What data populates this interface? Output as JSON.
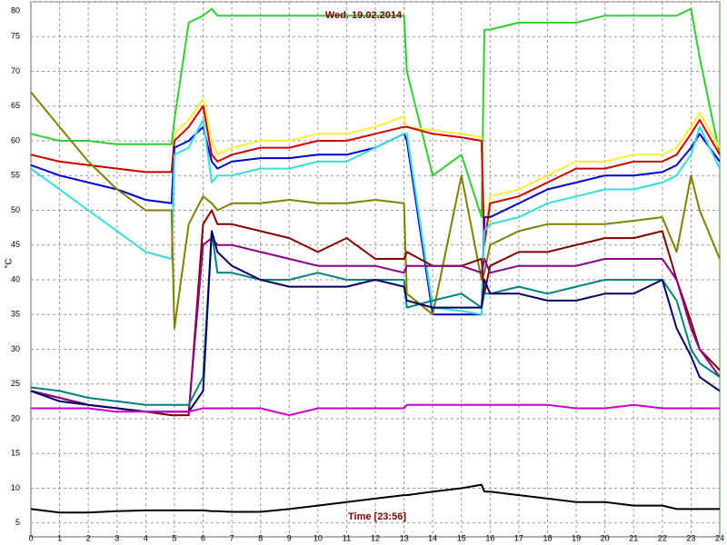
{
  "chart_data": {
    "type": "line",
    "title": "Wed. 19.02.2014",
    "x_label": "Time [23:56]",
    "y_label": "°C",
    "x": [
      0,
      1,
      2,
      3,
      4,
      4.9,
      5,
      5.5,
      6,
      6.3,
      6.5,
      7,
      8,
      9,
      10,
      11,
      12,
      13,
      13.1,
      14,
      15,
      15.7,
      15.8,
      16,
      17,
      18,
      19,
      20,
      21,
      22,
      22.5,
      23,
      23.3,
      24
    ],
    "series": [
      {
        "color": "#33cc33",
        "values": [
          61,
          60,
          60,
          59.5,
          59.5,
          59.5,
          63,
          77,
          78,
          79,
          78,
          78,
          78,
          78,
          78,
          78,
          78,
          78,
          70,
          55,
          58,
          49,
          76,
          76,
          77,
          77,
          77,
          78,
          78,
          78,
          78,
          79,
          72,
          58
        ]
      },
      {
        "color": "#ffee33",
        "values": [
          58,
          57,
          56.5,
          56,
          55.5,
          55.5,
          61,
          63,
          66,
          60,
          58,
          59,
          60,
          60,
          61,
          61,
          62,
          63.5,
          62,
          61.5,
          61,
          60.5,
          46,
          52,
          53,
          55,
          57,
          57,
          58,
          58,
          59,
          62,
          64,
          59
        ]
      },
      {
        "color": "#cc0000",
        "values": [
          58,
          57,
          56.5,
          56,
          55.5,
          55.5,
          60,
          62,
          65,
          58,
          57,
          58,
          59,
          59,
          60,
          60,
          61,
          62,
          62,
          61,
          60.5,
          60,
          45,
          51,
          52,
          54,
          56,
          56,
          57,
          57,
          58,
          61,
          63,
          58
        ]
      },
      {
        "color": "#0000cc",
        "values": [
          56.5,
          55,
          54,
          53,
          51.5,
          51,
          59,
          60,
          62,
          57,
          56,
          57,
          57.5,
          57.5,
          58,
          58,
          59,
          61,
          60,
          35,
          35,
          35,
          49,
          49,
          51,
          53,
          54,
          55,
          55,
          55.5,
          56.5,
          59,
          61,
          57
        ]
      },
      {
        "color": "#33dddd",
        "values": [
          56,
          53,
          50,
          47,
          44,
          43,
          58,
          59,
          63,
          54,
          55,
          55,
          56,
          56,
          57,
          57,
          59,
          61,
          61,
          36,
          35.5,
          35,
          47,
          48,
          49,
          51,
          52,
          53,
          53,
          54,
          55,
          58,
          62,
          56
        ]
      },
      {
        "color": "#808000",
        "values": [
          67,
          62,
          57,
          53,
          50,
          50,
          33,
          48,
          52,
          51,
          50,
          51,
          51,
          51.5,
          51,
          51,
          51.5,
          51,
          38,
          35,
          55,
          40,
          41,
          45,
          47,
          48,
          48,
          48,
          48.5,
          49,
          44,
          55,
          50,
          43
        ]
      },
      {
        "color": "#800000",
        "values": [
          24,
          23,
          22,
          21.5,
          21,
          20.5,
          20.5,
          20.5,
          48,
          50,
          48,
          48,
          47,
          46,
          44,
          46,
          43,
          43,
          44,
          42,
          42,
          43,
          38,
          42,
          44,
          44,
          45,
          46,
          46,
          47,
          40,
          34,
          30,
          27
        ]
      },
      {
        "color": "#880088",
        "values": [
          24,
          23,
          22,
          21.5,
          21,
          21,
          21,
          21,
          45,
          46,
          45,
          45,
          44,
          43,
          42,
          42,
          42,
          41,
          42,
          42,
          42,
          41,
          43,
          41,
          42,
          42,
          42,
          43,
          43,
          43,
          40,
          33,
          30,
          26
        ]
      },
      {
        "color": "#008080",
        "values": [
          24.5,
          24,
          23,
          22.5,
          22,
          22,
          22,
          22,
          26,
          47,
          41,
          41,
          40,
          40,
          41,
          40,
          40,
          40,
          36,
          37,
          38,
          36,
          38,
          38,
          39,
          38,
          39,
          40,
          40,
          40,
          37,
          30,
          28,
          26
        ]
      },
      {
        "color": "#000060",
        "values": [
          24,
          22.5,
          22,
          21.5,
          21,
          21,
          21,
          21,
          24,
          47,
          44,
          42,
          40,
          39,
          39,
          39,
          40,
          39,
          37,
          36,
          36,
          36,
          40,
          38,
          38,
          37,
          37,
          38,
          38,
          40,
          33,
          29,
          26,
          24
        ]
      },
      {
        "color": "#cc00cc",
        "values": [
          21.5,
          21.5,
          21.5,
          21,
          21,
          21,
          21,
          21,
          21.5,
          21.5,
          21.5,
          21.5,
          21.5,
          20.5,
          21.5,
          21.5,
          21.5,
          21.5,
          22,
          22,
          22,
          22,
          22,
          22,
          22,
          22,
          21.5,
          21.5,
          22,
          21.5,
          21.5,
          21.5,
          21.5,
          21.5
        ]
      },
      {
        "color": "#000000",
        "values": [
          7,
          6.5,
          6.5,
          6.7,
          6.8,
          6.8,
          6.8,
          6.8,
          6.8,
          6.7,
          6.7,
          6.6,
          6.6,
          7,
          7.5,
          8,
          8.5,
          9,
          9,
          9.5,
          10,
          10.5,
          9.5,
          9.5,
          9,
          8.5,
          8,
          8,
          7.5,
          7.5,
          7,
          7,
          7,
          7
        ]
      }
    ],
    "xlim": [
      0,
      24
    ],
    "xticks": [
      0,
      1,
      2,
      3,
      4,
      5,
      6,
      7,
      8,
      9,
      10,
      11,
      12,
      13,
      14,
      15,
      16,
      17,
      18,
      19,
      20,
      21,
      22,
      23,
      24
    ],
    "ylim": [
      3,
      80
    ],
    "yticks": [
      5,
      10,
      15,
      20,
      25,
      30,
      35,
      40,
      45,
      50,
      55,
      60,
      65,
      70,
      75,
      80
    ],
    "grid": true
  }
}
